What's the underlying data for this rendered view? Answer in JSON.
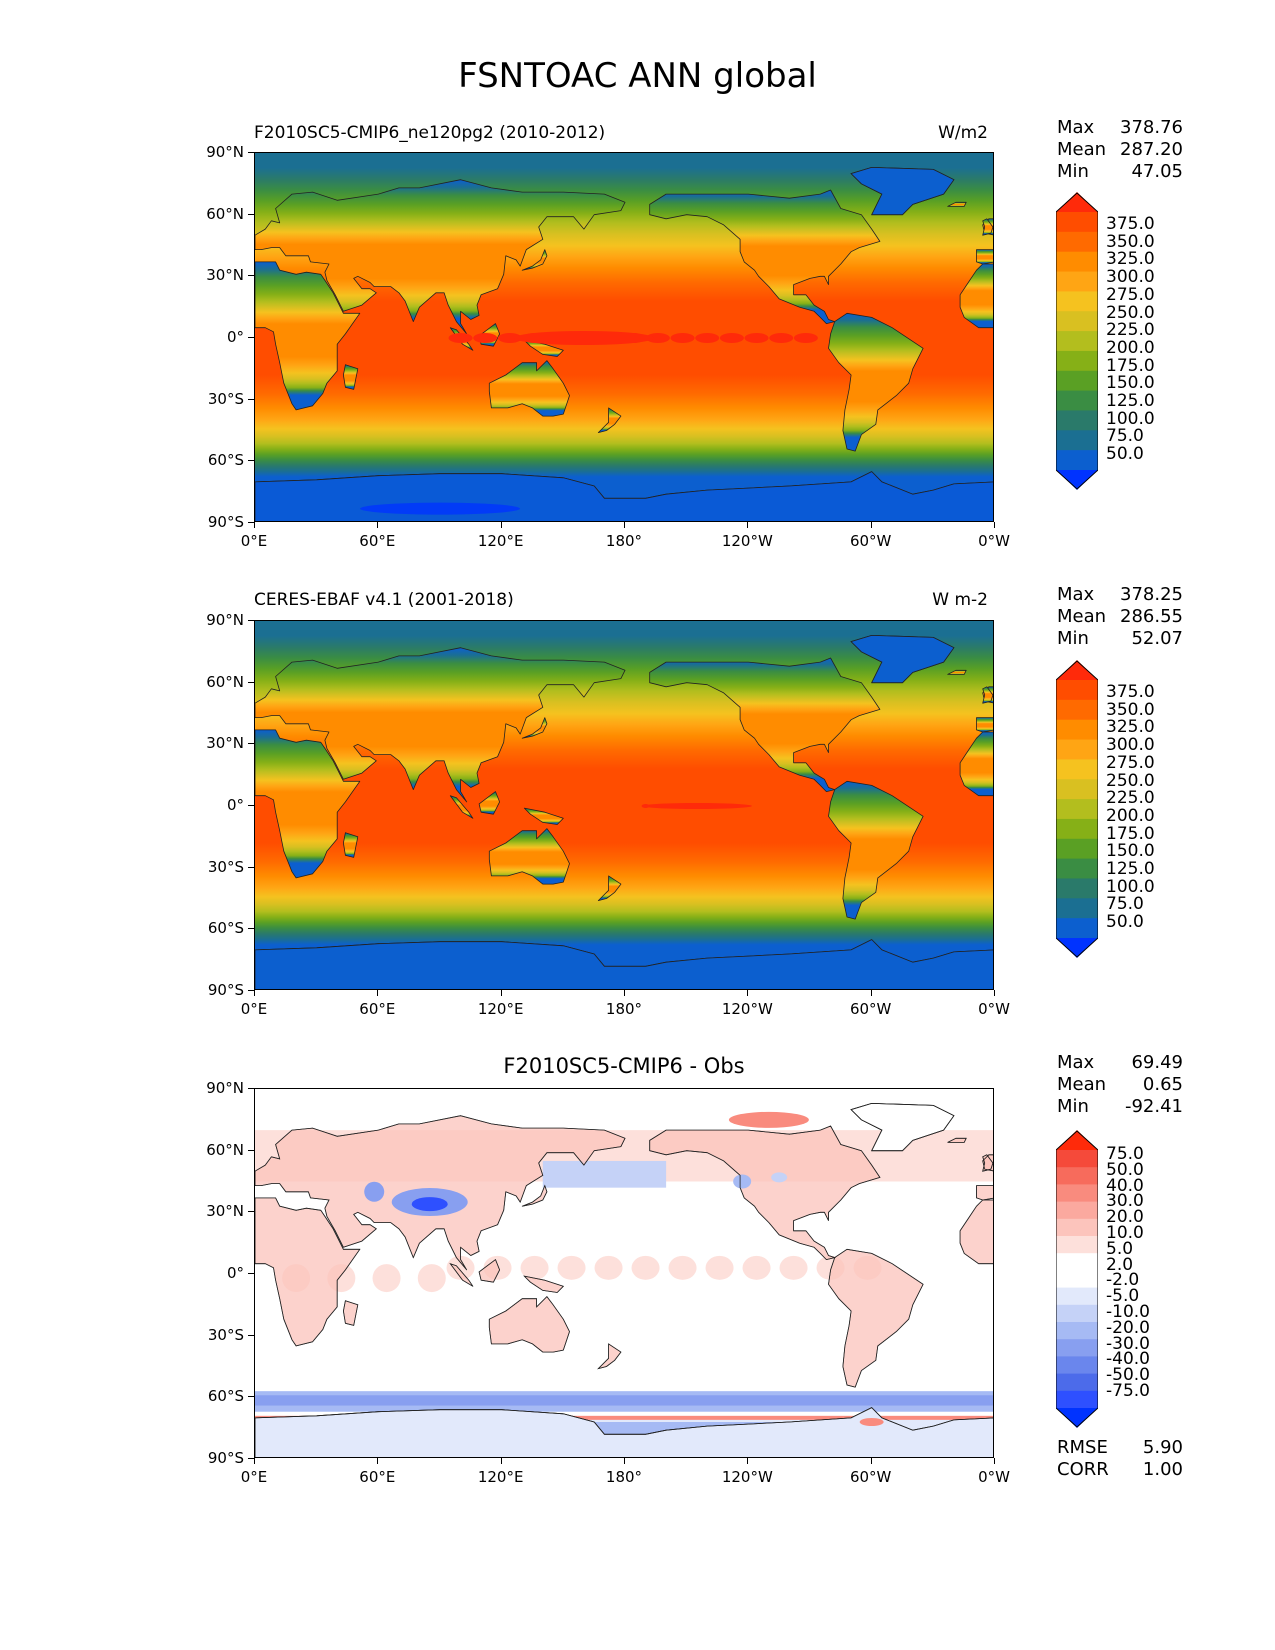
{
  "figure": {
    "title": "FSNTOAC ANN global"
  },
  "axes": {
    "lat_ticks": [
      "90°N",
      "60°N",
      "30°N",
      "0°",
      "30°S",
      "60°S",
      "90°S"
    ],
    "lon_ticks": [
      "0°E",
      "60°E",
      "120°E",
      "180°",
      "120°W",
      "60°W",
      "0°W"
    ]
  },
  "panels": [
    {
      "title": "F2010SC5-CMIP6_ne120pg2 (2010-2012)",
      "units": "W/m2",
      "stats": [
        {
          "label": "Max",
          "value": "378.76"
        },
        {
          "label": "Mean",
          "value": "287.20"
        },
        {
          "label": "Min",
          "value": "47.05"
        }
      ],
      "colorbar_labels": [
        "375.0",
        "350.0",
        "325.0",
        "300.0",
        "275.0",
        "250.0",
        "225.0",
        "200.0",
        "175.0",
        "150.0",
        "125.0",
        "100.0",
        "75.0",
        "50.0"
      ],
      "colorbar_colors": [
        "#ff2a0a",
        "#ff4d00",
        "#ff6a00",
        "#ff8c00",
        "#ffa514",
        "#f5c21f",
        "#d9c021",
        "#b3be1e",
        "#86b017",
        "#5aa024",
        "#3a8d43",
        "#2a7a6a",
        "#1b6f92",
        "#0c5fcf",
        "#0033ff"
      ]
    },
    {
      "title": "CERES-EBAF v4.1 (2001-2018)",
      "units": "W m-2",
      "stats": [
        {
          "label": "Max",
          "value": "378.25"
        },
        {
          "label": "Mean",
          "value": "286.55"
        },
        {
          "label": "Min",
          "value": "52.07"
        }
      ],
      "colorbar_labels": [
        "375.0",
        "350.0",
        "325.0",
        "300.0",
        "275.0",
        "250.0",
        "225.0",
        "200.0",
        "175.0",
        "150.0",
        "125.0",
        "100.0",
        "75.0",
        "50.0"
      ],
      "colorbar_colors": [
        "#ff2a0a",
        "#ff4d00",
        "#ff6a00",
        "#ff8c00",
        "#ffa514",
        "#f5c21f",
        "#d9c021",
        "#b3be1e",
        "#86b017",
        "#5aa024",
        "#3a8d43",
        "#2a7a6a",
        "#1b6f92",
        "#0c5fcf",
        "#0033ff"
      ]
    },
    {
      "title": "F2010SC5-CMIP6 - Obs",
      "stats": [
        {
          "label": "Max",
          "value": "69.49"
        },
        {
          "label": "Mean",
          "value": "0.65"
        },
        {
          "label": "Min",
          "value": "-92.41"
        }
      ],
      "colorbar_labels": [
        "75.0",
        "50.0",
        "40.0",
        "30.0",
        "20.0",
        "10.0",
        "5.0",
        "2.0",
        "-2.0",
        "-5.0",
        "-10.0",
        "-20.0",
        "-30.0",
        "-40.0",
        "-50.0",
        "-75.0"
      ],
      "colorbar_colors": [
        "#ff2a0a",
        "#f54a3a",
        "#f76b5c",
        "#f98b7e",
        "#fba99f",
        "#fcc4bc",
        "#fde0db",
        "#ffffff",
        "#ffffff",
        "#e2e9fb",
        "#c5d2f7",
        "#a6baf4",
        "#889ff0",
        "#6a86ed",
        "#4c6bea",
        "#2e50ff",
        "#0033ff"
      ],
      "rmse_label": "RMSE",
      "rmse_value": "5.90",
      "corr_label": "CORR",
      "corr_value": "1.00"
    }
  ]
}
